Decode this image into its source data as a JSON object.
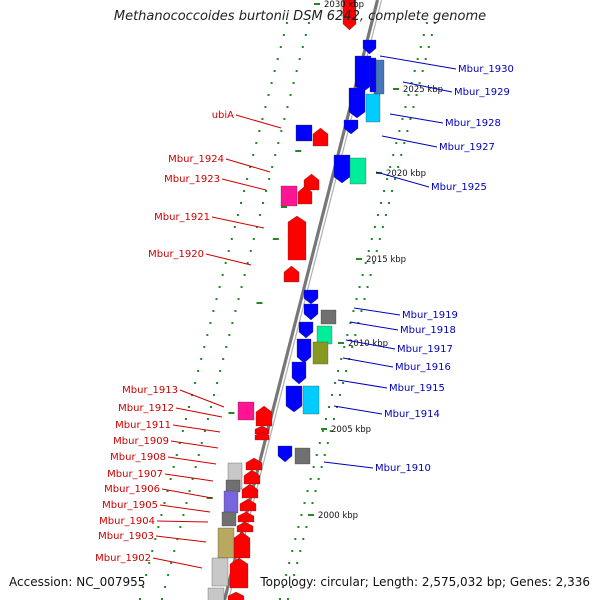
{
  "title": "Methanococcoides burtonii DSM 6242, complete genome",
  "accession": "Accession: NC_007955",
  "topology": "Topology: circular; Length: 2,575,032 bp; Genes: 2,336",
  "colors": {
    "reverse_label": "#cc0000",
    "forward_label": "#0000bb",
    "backbone": "#777777",
    "tick": "#228822",
    "gene_red": "#ff0000",
    "gene_blue": "#0000ff",
    "gene_pink": "#ff1493",
    "gene_cyan": "#00ccff",
    "gene_teal": "#00ee99",
    "gene_olive": "#889922",
    "gene_gray": "#707070",
    "gene_steel": "#4477bb"
  },
  "kbp_marks": [
    "2030 kbp",
    "2025 kbp",
    "2020 kbp",
    "2015 kbp",
    "2010 kbp",
    "2005 kbp",
    "2000 kbp"
  ],
  "reverse_genes": [
    "ubiA",
    "Mbur_1924",
    "Mbur_1923",
    "Mbur_1921",
    "Mbur_1920",
    "Mbur_1913",
    "Mbur_1912",
    "Mbur_1911",
    "Mbur_1909",
    "Mbur_1908",
    "Mbur_1907",
    "Mbur_1906",
    "Mbur_1905",
    "Mbur_1904",
    "Mbur_1903",
    "Mbur_1902"
  ],
  "forward_genes": [
    "Mbur_1930",
    "Mbur_1929",
    "Mbur_1928",
    "Mbur_1927",
    "Mbur_1925",
    "Mbur_1919",
    "Mbur_1918",
    "Mbur_1917",
    "Mbur_1916",
    "Mbur_1915",
    "Mbur_1914",
    "Mbur_1910"
  ]
}
